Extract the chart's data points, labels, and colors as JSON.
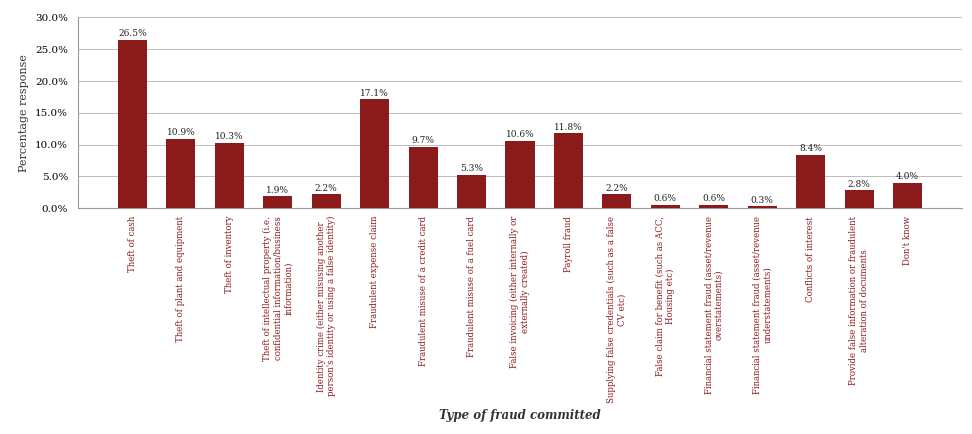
{
  "title": "",
  "xlabel": "Type of fraud committed",
  "ylabel": "Percentage response",
  "bar_color": "#8B1A1A",
  "background_color": "#ffffff",
  "ylim": [
    0,
    30
  ],
  "yticks": [
    0,
    5,
    10,
    15,
    20,
    25,
    30
  ],
  "ytick_labels": [
    "0.0%",
    "5.0%",
    "10.0%",
    "15.0%",
    "20.0%",
    "25.0%",
    "30.0%"
  ],
  "categories": [
    "Theft of cash",
    "Theft of plant and equipment",
    "Theft of inventory",
    "Theft of intellectual property (i.e.\nconfidential information/business\ninformation)",
    "Identity crime (either misusing another\nperson's identity or using a false identity)",
    "Fraudulent expense claim",
    "Fraudulent misuse of a credit card",
    "Fraudulent misuse of a fuel card",
    "False invoicing (either internally or\nexternally created)",
    "Payroll fraud",
    "Supplying false credentials (such as a false\nCV etc)",
    "False claim for benefit (such as ACC,\nHousing etc)",
    "Financial statement fraud (asset/revenue\noverstatements)",
    "Financial statement fraud (asset/revenue\nunderstatements)",
    "Conflicts of interest",
    "Provide false information or fraudulent\nalteration of documents",
    "Don't know"
  ],
  "values": [
    26.5,
    10.9,
    10.3,
    1.9,
    2.2,
    17.1,
    9.7,
    5.3,
    10.6,
    11.8,
    2.2,
    0.6,
    0.6,
    0.3,
    8.4,
    2.8,
    4.0
  ],
  "value_labels": [
    "26.5%",
    "10.9%",
    "10.3%",
    "1.9%",
    "2.2%",
    "17.1%",
    "9.7%",
    "5.3%",
    "10.6%",
    "11.8%",
    "2.2%",
    "0.6%",
    "0.6%",
    "0.3%",
    "8.4%",
    "2.8%",
    "4.0%"
  ]
}
